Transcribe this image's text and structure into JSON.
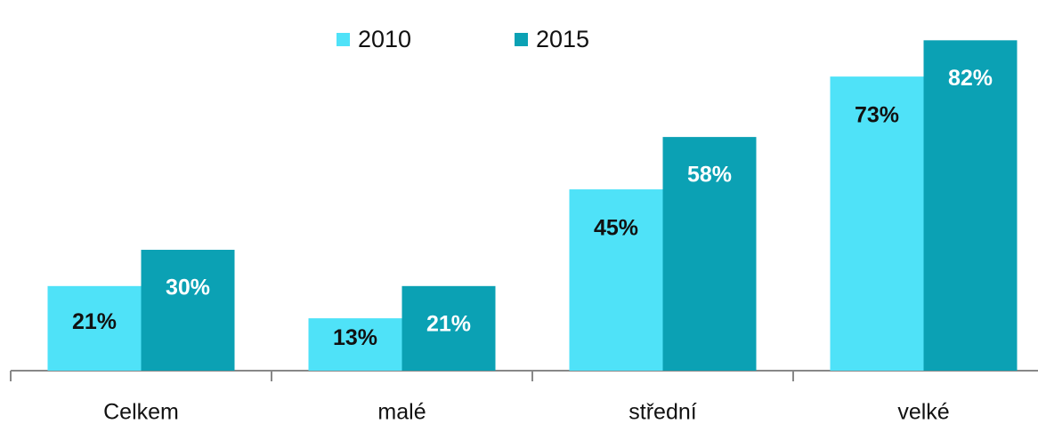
{
  "chart_data": {
    "type": "bar",
    "categories": [
      "Celkem",
      "malé",
      "střední",
      "velké"
    ],
    "series": [
      {
        "name": "2010",
        "color": "#4fe2f8",
        "values": [
          21,
          13,
          45,
          73
        ],
        "value_labels": [
          "21%",
          "13%",
          "45%",
          "73%"
        ]
      },
      {
        "name": "2015",
        "color": "#0ba1b4",
        "values": [
          30,
          21,
          58,
          82
        ],
        "value_labels": [
          "30%",
          "21%",
          "58%",
          "82%"
        ]
      }
    ],
    "ylim": [
      0,
      92
    ],
    "legend": "top"
  }
}
